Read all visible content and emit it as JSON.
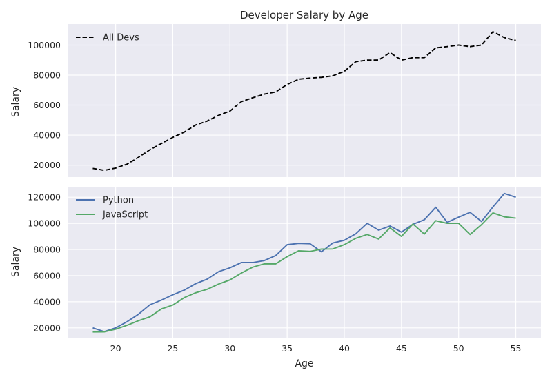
{
  "chart_data": [
    {
      "type": "line",
      "title": "Developer Salary by Age",
      "xlabel": "",
      "ylabel": "Salary",
      "x": [
        18,
        19,
        20,
        21,
        22,
        23,
        24,
        25,
        26,
        27,
        28,
        29,
        30,
        31,
        32,
        33,
        34,
        35,
        36,
        37,
        38,
        39,
        40,
        41,
        42,
        43,
        44,
        45,
        46,
        47,
        48,
        49,
        50,
        51,
        52,
        53,
        54,
        55
      ],
      "xlim": [
        15.8,
        57.2
      ],
      "ylim": [
        12000,
        114000
      ],
      "yticks": [
        20000,
        40000,
        60000,
        80000,
        100000
      ],
      "xticks": [
        20,
        25,
        30,
        35,
        40,
        45,
        50,
        55
      ],
      "grid": true,
      "legend": "top-left",
      "series": [
        {
          "name": "All Devs",
          "color": "#000000",
          "dash": "dashed",
          "values": [
            17784,
            16500,
            18012,
            20628,
            25206,
            30252,
            34368,
            38496,
            42000,
            46752,
            49320,
            53200,
            56000,
            62316,
            64928,
            67317,
            68748,
            73752,
            77232,
            78000,
            78508,
            79536,
            82488,
            88935,
            90000,
            90056,
            95000,
            90000,
            91633,
            91660,
            98150,
            98964,
            100000,
            98988,
            100000,
            108923,
            105000,
            103117
          ]
        }
      ]
    },
    {
      "type": "line",
      "title": "",
      "xlabel": "Age",
      "ylabel": "Salary",
      "x": [
        18,
        19,
        20,
        21,
        22,
        23,
        24,
        25,
        26,
        27,
        28,
        29,
        30,
        31,
        32,
        33,
        34,
        35,
        36,
        37,
        38,
        39,
        40,
        41,
        42,
        43,
        44,
        45,
        46,
        47,
        48,
        49,
        50,
        51,
        52,
        53,
        54,
        55
      ],
      "xlim": [
        15.8,
        57.2
      ],
      "ylim": [
        12000,
        128000
      ],
      "yticks": [
        20000,
        40000,
        60000,
        80000,
        100000,
        120000
      ],
      "xticks": [
        20,
        25,
        30,
        35,
        40,
        45,
        50,
        55
      ],
      "xticklabels": [
        "20",
        "25",
        "30",
        "35",
        "40",
        "45",
        "50",
        "55"
      ],
      "grid": true,
      "legend": "top-left",
      "series": [
        {
          "name": "Python",
          "color": "#4c72b0",
          "values": [
            20046,
            17100,
            20000,
            24744,
            30500,
            37732,
            41247,
            45372,
            48876,
            53850,
            57287,
            63016,
            65998,
            70003,
            70000,
            71496,
            75370,
            83640,
            84666,
            84392,
            78254,
            85000,
            87038,
            91991,
            100000,
            94796,
            97962,
            93302,
            99240,
            102736,
            112285,
            100771,
            104708,
            108423,
            101407,
            112542,
            122870,
            120000
          ]
        },
        {
          "name": "JavaScript",
          "color": "#55a868",
          "values": [
            16896,
            17000,
            19000,
            22000,
            25500,
            28500,
            34500,
            37500,
            43150,
            46899,
            49500,
            53534,
            56718,
            62000,
            66500,
            69000,
            69000,
            74500,
            79000,
            78500,
            80300,
            80400,
            83700,
            88500,
            91500,
            88000,
            96500,
            90000,
            99500,
            91800,
            102000,
            100000,
            100000,
            91500,
            99000,
            108000,
            105000,
            104000
          ]
        }
      ]
    }
  ]
}
